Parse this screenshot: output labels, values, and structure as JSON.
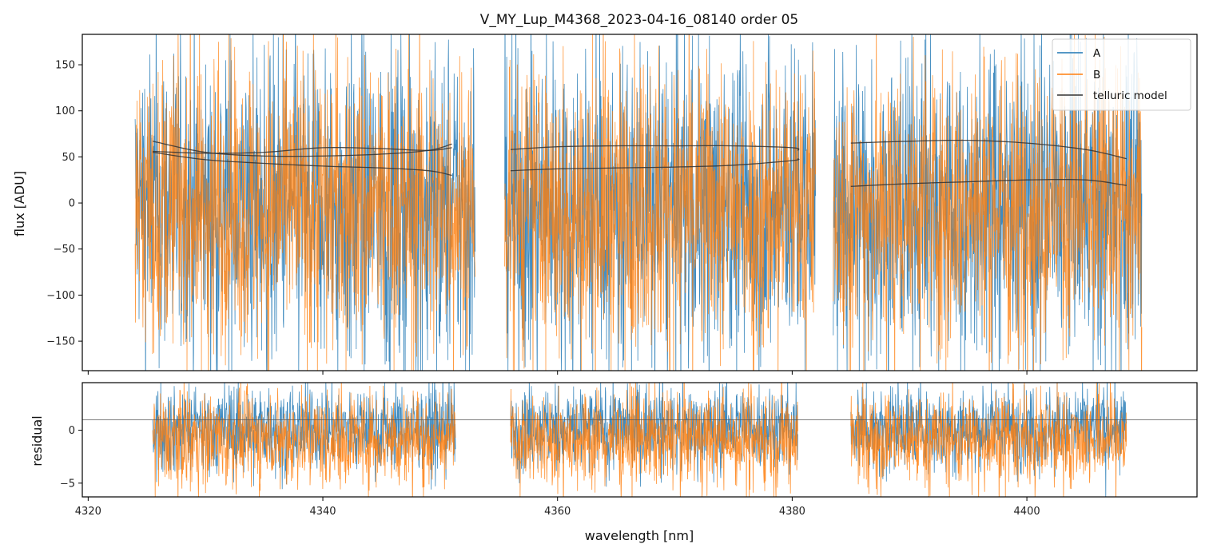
{
  "chart_data": [
    {
      "type": "line",
      "panel": "top",
      "title": "V_MY_Lup_M4368_2023-04-16_08140  order 05",
      "xlabel": "",
      "ylabel": "flux [ADU]",
      "xlim": [
        4319.5,
        4414.5
      ],
      "ylim": [
        -182,
        183
      ],
      "yticks": [
        -150,
        -100,
        -50,
        0,
        50,
        100,
        150
      ],
      "ytick_labels": [
        "−150",
        "−100",
        "−50",
        "0",
        "50",
        "100",
        "150"
      ],
      "xticks": [
        4320,
        4340,
        4360,
        4380,
        4400
      ],
      "legend_position": "top-right",
      "legend": [
        "A",
        "B",
        "telluric model"
      ],
      "segments": [
        [
          4324.0,
          4353.0
        ],
        [
          4355.5,
          4382.0
        ],
        [
          4383.5,
          4409.8
        ]
      ],
      "series": [
        {
          "name": "A",
          "color": "#1f77b4",
          "noise_amplitude": 85,
          "offset": -5
        },
        {
          "name": "B",
          "color": "#ff7f0e",
          "noise_amplitude": 80,
          "offset": -5
        },
        {
          "name": "telluric model",
          "color": "#333333",
          "curves": [
            {
              "x": [
                4325.5,
                4330,
                4335,
                4340,
                4345,
                4349,
                4351
              ],
              "y": [
                67,
                55,
                51,
                51,
                53,
                57,
                64
              ]
            },
            {
              "x": [
                4325.5,
                4330,
                4335,
                4340,
                4345,
                4349,
                4351
              ],
              "y": [
                56,
                54,
                55,
                60,
                59,
                57,
                60
              ]
            },
            {
              "x": [
                4325.5,
                4330,
                4335,
                4340,
                4345,
                4349,
                4351
              ],
              "y": [
                55,
                47,
                43,
                40,
                38,
                35,
                30
              ]
            },
            {
              "x": [
                4356,
                4360,
                4365,
                4370,
                4375,
                4380,
                4380.5
              ],
              "y": [
                58,
                61,
                62,
                62,
                62,
                60,
                57
              ]
            },
            {
              "x": [
                4356,
                4360,
                4365,
                4370,
                4375,
                4380,
                4380.5
              ],
              "y": [
                35,
                37,
                38,
                39,
                41,
                46,
                48
              ]
            },
            {
              "x": [
                4385,
                4390,
                4395,
                4400,
                4405,
                4408.5
              ],
              "y": [
                65,
                67,
                68,
                65,
                58,
                48
              ]
            },
            {
              "x": [
                4385,
                4390,
                4395,
                4400,
                4405,
                4408.5
              ],
              "y": [
                18,
                21,
                23,
                25,
                25,
                19
              ]
            }
          ]
        }
      ]
    },
    {
      "type": "line",
      "panel": "bottom",
      "title": "",
      "xlabel": "wavelength [nm]",
      "ylabel": "residual",
      "xlim": [
        4319.5,
        4414.5
      ],
      "ylim": [
        -6.3,
        4.5
      ],
      "yticks": [
        -5,
        0
      ],
      "ytick_labels": [
        "−5",
        "0"
      ],
      "xticks": [
        4320,
        4340,
        4360,
        4380,
        4400
      ],
      "xtick_labels": [
        "4320",
        "4340",
        "4360",
        "4380",
        "4400"
      ],
      "hline": 1.0,
      "segments": [
        [
          4325.5,
          4351.3
        ],
        [
          4356.0,
          4380.5
        ],
        [
          4385.0,
          4408.5
        ]
      ],
      "series": [
        {
          "name": "A",
          "color": "#1f77b4",
          "noise_amplitude": 2.0,
          "offset": 0.2
        },
        {
          "name": "B",
          "color": "#ff7f0e",
          "noise_amplitude": 2.2,
          "offset": -0.8
        }
      ]
    }
  ]
}
